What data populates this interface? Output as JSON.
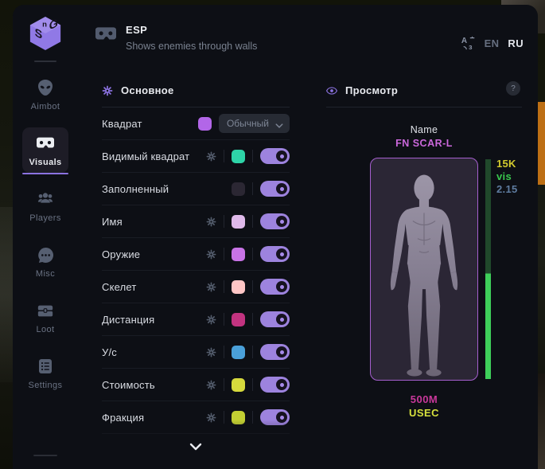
{
  "sidebar": {
    "logo_name": "SG",
    "items": [
      {
        "id": "aimbot",
        "label": "Aimbot",
        "icon": "alien",
        "active": false
      },
      {
        "id": "visuals",
        "label": "Visuals",
        "icon": "goggles",
        "active": true
      },
      {
        "id": "players",
        "label": "Players",
        "icon": "users",
        "active": false
      },
      {
        "id": "misc",
        "label": "Misc",
        "icon": "chat-dots",
        "active": false
      },
      {
        "id": "loot",
        "label": "Loot",
        "icon": "chest",
        "active": false
      },
      {
        "id": "settings",
        "label": "Settings",
        "icon": "list",
        "active": false
      }
    ]
  },
  "header": {
    "title": "ESP",
    "subtitle": "Shows enemies through walls",
    "languages": [
      {
        "code": "EN",
        "active": false
      },
      {
        "code": "RU",
        "active": true
      }
    ]
  },
  "main_panel": {
    "title": "Основное",
    "rows": [
      {
        "label": "Квадрат",
        "gear": false,
        "swatch": "#b266e8",
        "control": "dropdown",
        "dropdown_value": "Обычный"
      },
      {
        "label": "Видимый квадрат",
        "gear": true,
        "swatch": "#2ed4a8",
        "control": "toggle",
        "on": true
      },
      {
        "label": "Заполненный",
        "gear": false,
        "swatch": "#2b2733",
        "control": "toggle",
        "on": true
      },
      {
        "label": "Имя",
        "gear": true,
        "swatch": "#dfb9ea",
        "control": "toggle",
        "on": true
      },
      {
        "label": "Оружие",
        "gear": true,
        "swatch": "#c873e6",
        "control": "toggle",
        "on": true
      },
      {
        "label": "Скелет",
        "gear": true,
        "swatch": "#ffc6c6",
        "control": "toggle",
        "on": true
      },
      {
        "label": "Дистанция",
        "gear": true,
        "swatch": "#c23380",
        "control": "toggle",
        "on": true
      },
      {
        "label": "У/с",
        "gear": true,
        "swatch": "#4aa0d9",
        "control": "toggle",
        "on": true
      },
      {
        "label": "Стоимость",
        "gear": true,
        "swatch": "#d6d93d",
        "control": "toggle",
        "on": true
      },
      {
        "label": "Фракция",
        "gear": true,
        "swatch": "#c3cf33",
        "control": "toggle",
        "on": true
      }
    ]
  },
  "preview_panel": {
    "title": "Просмотр",
    "help_label": "?",
    "name_label": "Name",
    "weapon_name": "FN SCAR-L",
    "stats": [
      {
        "text": "15K",
        "color": "#d3cb2e"
      },
      {
        "text": "vis",
        "color": "#39c84e"
      },
      {
        "text": "2.15",
        "color": "#5e7ca0"
      }
    ],
    "money": "500M",
    "money_color": "#c9389b",
    "faction": "USEC",
    "faction_color": "#d6e03d",
    "bar": {
      "top_color": "#20492b",
      "bottom_color": "#3ecf5a",
      "split_percent": 52
    }
  },
  "colors": {
    "accent": "#8b72e0",
    "toggle_on": "#9d83de",
    "window_bg": "#0d0f15"
  }
}
